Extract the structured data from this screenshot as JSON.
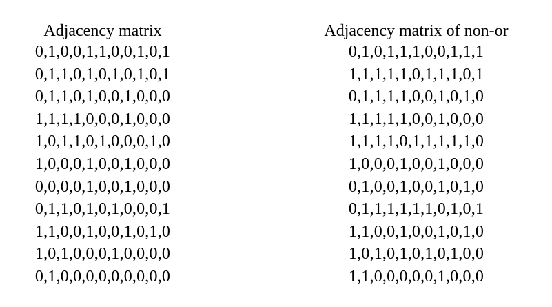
{
  "left_matrix": {
    "title": "Adjacency matrix",
    "rows": [
      "0,1,0,0,1,1,0,0,1,0,1",
      "0,1,1,0,1,0,1,0,1,0,1",
      "0,1,1,0,1,0,0,1,0,0,0",
      "1,1,1,1,0,0,0,1,0,0,0",
      "1,0,1,1,0,1,0,0,0,1,0",
      "1,0,0,0,1,0,0,1,0,0,0",
      "0,0,0,0,1,0,0,1,0,0,0",
      "0,1,1,0,1,0,1,0,0,0,1",
      "1,1,0,0,1,0,0,1,0,1,0",
      "1,0,1,0,0,0,1,0,0,0,0",
      "0,1,0,0,0,0,0,0,0,0,0"
    ]
  },
  "right_matrix": {
    "title": "Adjacency matrix of non-or",
    "rows": [
      "0,1,0,1,1,1,0,0,1,1,1",
      "1,1,1,1,1,0,1,1,1,0,1",
      "0,1,1,1,1,0,0,1,0,1,0",
      "1,1,1,1,1,0,0,1,0,0,0",
      "1,1,1,1,0,1,1,1,1,1,0",
      "1,0,0,0,1,0,0,1,0,0,0",
      "0,1,0,0,1,0,0,1,0,1,0",
      "0,1,1,1,1,1,1,0,1,0,1",
      "1,1,0,0,1,0,0,1,0,1,0",
      "1,0,1,0,1,0,1,0,1,0,0",
      "1,1,0,0,0,0,0,1,0,0,0"
    ]
  }
}
